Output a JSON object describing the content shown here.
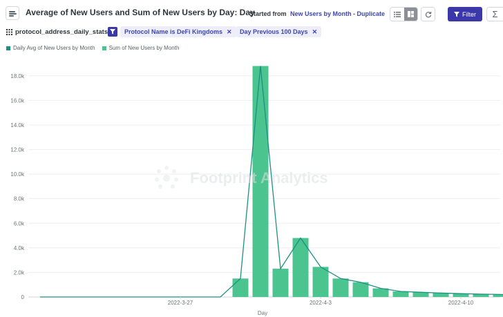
{
  "header": {
    "title": "Average of New Users and Sum of New Users by Day: Day",
    "started_label": "Started from",
    "started_link": "New Users by Month - Duplicate",
    "filter_label": "Filter"
  },
  "filters": {
    "dataset": "protocol_address_daily_stats",
    "chips": [
      {
        "label": "Protocol Name is DeFi Kingdoms"
      },
      {
        "label": "Day Previous 100 Days"
      }
    ],
    "remove_glyph": "✕"
  },
  "watermark": "Footprint Analytics",
  "colors": {
    "accent": "#3b39a9",
    "line_series": "#1a9183",
    "bar_series": "#4cc48f"
  },
  "chart_data": {
    "type": "bar",
    "xlabel": "Day",
    "ylabel": "",
    "ylim": [
      0,
      19000
    ],
    "grid": true,
    "legend_position": "top-left",
    "y_ticks": [
      0,
      2000,
      4000,
      6000,
      8000,
      10000,
      12000,
      14000,
      16000,
      18000
    ],
    "y_tick_labels": [
      "0",
      "2.0k",
      "4.0k",
      "6.0k",
      "8.0k",
      "10.0k",
      "12.0k",
      "14.0k",
      "16.0k",
      "18.0k"
    ],
    "x_tick_labels": [
      "2022-3-27",
      "2022-4-3",
      "2022-4-10"
    ],
    "x_tick_dates": [
      "2022-03-27",
      "2022-04-03",
      "2022-04-10"
    ],
    "x": [
      "2022-03-20",
      "2022-03-21",
      "2022-03-22",
      "2022-03-23",
      "2022-03-24",
      "2022-03-25",
      "2022-03-26",
      "2022-03-27",
      "2022-03-28",
      "2022-03-29",
      "2022-03-30",
      "2022-03-31",
      "2022-04-01",
      "2022-04-02",
      "2022-04-03",
      "2022-04-04",
      "2022-04-05",
      "2022-04-06",
      "2022-04-07",
      "2022-04-08",
      "2022-04-09",
      "2022-04-10",
      "2022-04-11",
      "2022-04-12",
      "2022-04-13",
      "2022-04-14"
    ],
    "series": [
      {
        "name": "Daily Avg of New Users by Month",
        "kind": "line",
        "color": "#1a9183",
        "values": [
          0,
          0,
          0,
          0,
          0,
          0,
          0,
          0,
          0,
          0,
          1500,
          18800,
          2300,
          4800,
          2450,
          1500,
          1200,
          700,
          450,
          380,
          320,
          270,
          230,
          200,
          170,
          150
        ]
      },
      {
        "name": "Sum of New Users by Month",
        "kind": "bar",
        "color": "#4cc48f",
        "values": [
          0,
          0,
          0,
          0,
          0,
          0,
          0,
          0,
          0,
          0,
          1500,
          18800,
          2300,
          4800,
          2450,
          1500,
          1200,
          700,
          450,
          380,
          320,
          270,
          230,
          200,
          170,
          150
        ]
      }
    ]
  }
}
